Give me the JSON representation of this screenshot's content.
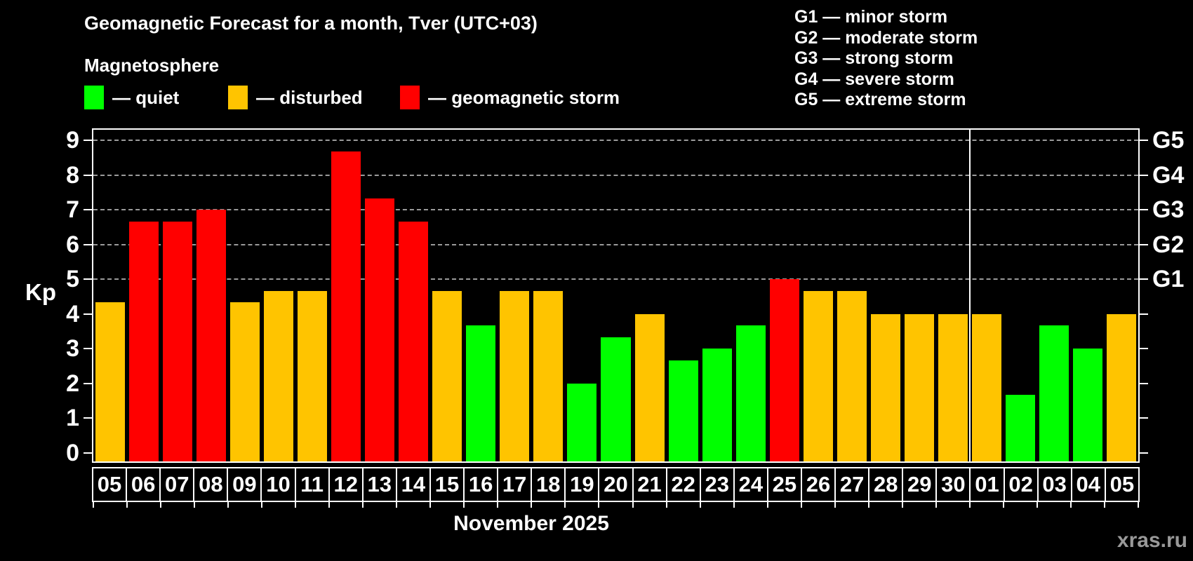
{
  "page": {
    "title": "Geomagnetic Forecast for a month, Tver (UTC+03)",
    "subtitle": "Magnetosphere",
    "month_label": "November 2025",
    "watermark": "xras.ru"
  },
  "legend": {
    "items": [
      {
        "key": "quiet",
        "label": "— quiet",
        "color": "#00ff00"
      },
      {
        "key": "disturbed",
        "label": "— disturbed",
        "color": "#ffc400"
      },
      {
        "key": "storm",
        "label": "— geomagnetic storm",
        "color": "#ff0000"
      }
    ]
  },
  "g_legend": {
    "items": [
      {
        "label": "G1 — minor storm"
      },
      {
        "label": "G2 — moderate storm"
      },
      {
        "label": "G3 — strong storm"
      },
      {
        "label": "G4 — severe storm"
      },
      {
        "label": "G5 — extreme storm"
      }
    ]
  },
  "axes": {
    "y_label": "Kp",
    "y_ticks": [
      0,
      1,
      2,
      3,
      4,
      5,
      6,
      7,
      8,
      9
    ],
    "right_labels": [
      {
        "kp": 5,
        "label": "G1"
      },
      {
        "kp": 6,
        "label": "G2"
      },
      {
        "kp": 7,
        "label": "G3"
      },
      {
        "kp": 8,
        "label": "G4"
      },
      {
        "kp": 9,
        "label": "G5"
      }
    ]
  },
  "chart_data": {
    "type": "bar",
    "title": "Geomagnetic Forecast for a month, Tver (UTC+03)",
    "xlabel": "November 2025",
    "ylabel": "Kp",
    "ylim": [
      0,
      9.4
    ],
    "grid": "dashed horizontal at Kp 5-9 only",
    "legend_position": "top-left",
    "month_separator_after_index": 25,
    "status_colors": {
      "quiet": "#00ff00",
      "disturbed": "#ffc400",
      "storm": "#ff0000"
    },
    "categories": [
      "05",
      "06",
      "07",
      "08",
      "09",
      "10",
      "11",
      "12",
      "13",
      "14",
      "15",
      "16",
      "17",
      "18",
      "19",
      "20",
      "21",
      "22",
      "23",
      "24",
      "25",
      "26",
      "27",
      "28",
      "29",
      "30",
      "01",
      "02",
      "03",
      "04",
      "05"
    ],
    "values": [
      4.33,
      6.67,
      6.67,
      7,
      4.33,
      4.67,
      4.67,
      8.67,
      7.33,
      6.67,
      4.67,
      3.67,
      4.67,
      4.67,
      2,
      3.33,
      4,
      2.67,
      3,
      3.67,
      5,
      4.67,
      4.67,
      4,
      4,
      4,
      4,
      1.67,
      3.67,
      3,
      4
    ],
    "statuses": [
      "disturbed",
      "storm",
      "storm",
      "storm",
      "disturbed",
      "disturbed",
      "disturbed",
      "storm",
      "storm",
      "storm",
      "disturbed",
      "quiet",
      "disturbed",
      "disturbed",
      "quiet",
      "quiet",
      "disturbed",
      "quiet",
      "quiet",
      "quiet",
      "storm",
      "disturbed",
      "disturbed",
      "disturbed",
      "disturbed",
      "disturbed",
      "disturbed",
      "quiet",
      "quiet",
      "quiet",
      "disturbed"
    ]
  }
}
